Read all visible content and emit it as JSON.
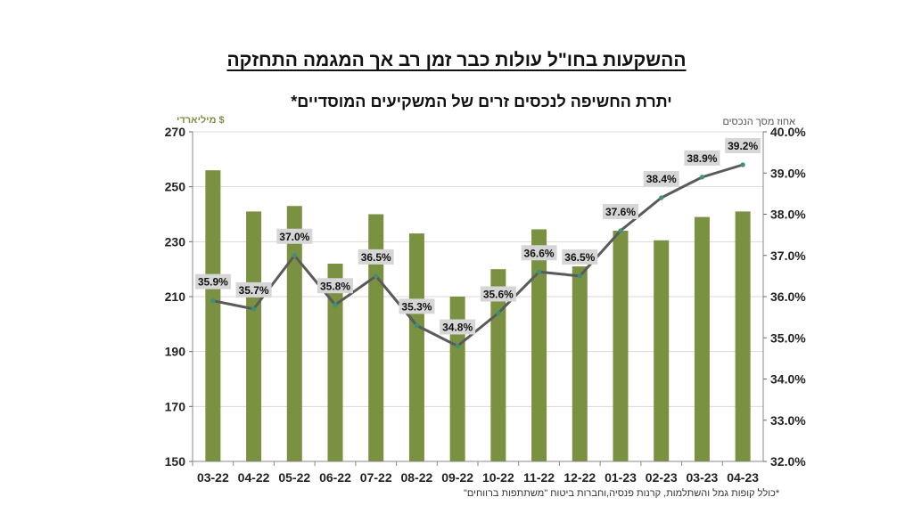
{
  "page": {
    "title": "ההשקעות בחו\"ל עולות כבר זמן רב אך המגמה התחזקה",
    "footnote": "*כולל קופות גמל והשתלמות, קרנות פנסיה,וחברות ביטוח \"משתתפות ברווחים\""
  },
  "chart_data": {
    "type": "bar",
    "title": "יתרת החשיפה לנכסים זרים של המשקיעים המוסדיים*",
    "categories": [
      "03-22",
      "04-22",
      "05-22",
      "06-22",
      "07-22",
      "08-22",
      "09-22",
      "10-22",
      "11-22",
      "12-22",
      "01-23",
      "02-23",
      "03-23",
      "04-23"
    ],
    "series": [
      {
        "type": "bar",
        "axis": "left",
        "values": [
          256,
          241,
          243,
          222,
          240,
          233,
          210,
          220,
          234.5,
          221,
          234,
          230.5,
          239,
          241
        ],
        "color": "#7a9142"
      },
      {
        "type": "line",
        "axis": "right",
        "values": [
          35.9,
          35.7,
          37.0,
          35.8,
          36.5,
          35.3,
          34.8,
          35.6,
          36.6,
          36.5,
          37.6,
          38.4,
          38.9,
          39.2
        ],
        "labels": [
          "35.9%",
          "35.7%",
          "37.0%",
          "35.8%",
          "36.5%",
          "35.3%",
          "34.8%",
          "35.6%",
          "36.6%",
          "36.5%",
          "37.6%",
          "38.4%",
          "38.9%",
          "39.2%"
        ],
        "color": "#5a5a5a",
        "marker_color": "#3f8f7a"
      }
    ],
    "ylabel_left": "מיליארדי $",
    "ylabel_right": "אחוז מסך הנכסים",
    "ylim_left": [
      150,
      270
    ],
    "ylim_right": [
      32.0,
      40.0
    ],
    "yticks_left": [
      "150",
      "170",
      "190",
      "210",
      "230",
      "250",
      "270"
    ],
    "yticks_right": [
      "32.0%",
      "33.0%",
      "34.0%",
      "35.0%",
      "36.0%",
      "37.0%",
      "38.0%",
      "39.0%",
      "40.0%"
    ],
    "grid": true,
    "colors": {
      "left_label": "#7a9142",
      "right_label": "#555555",
      "grid": "#d9d9d9",
      "label_box": "#d6d6d6"
    }
  }
}
